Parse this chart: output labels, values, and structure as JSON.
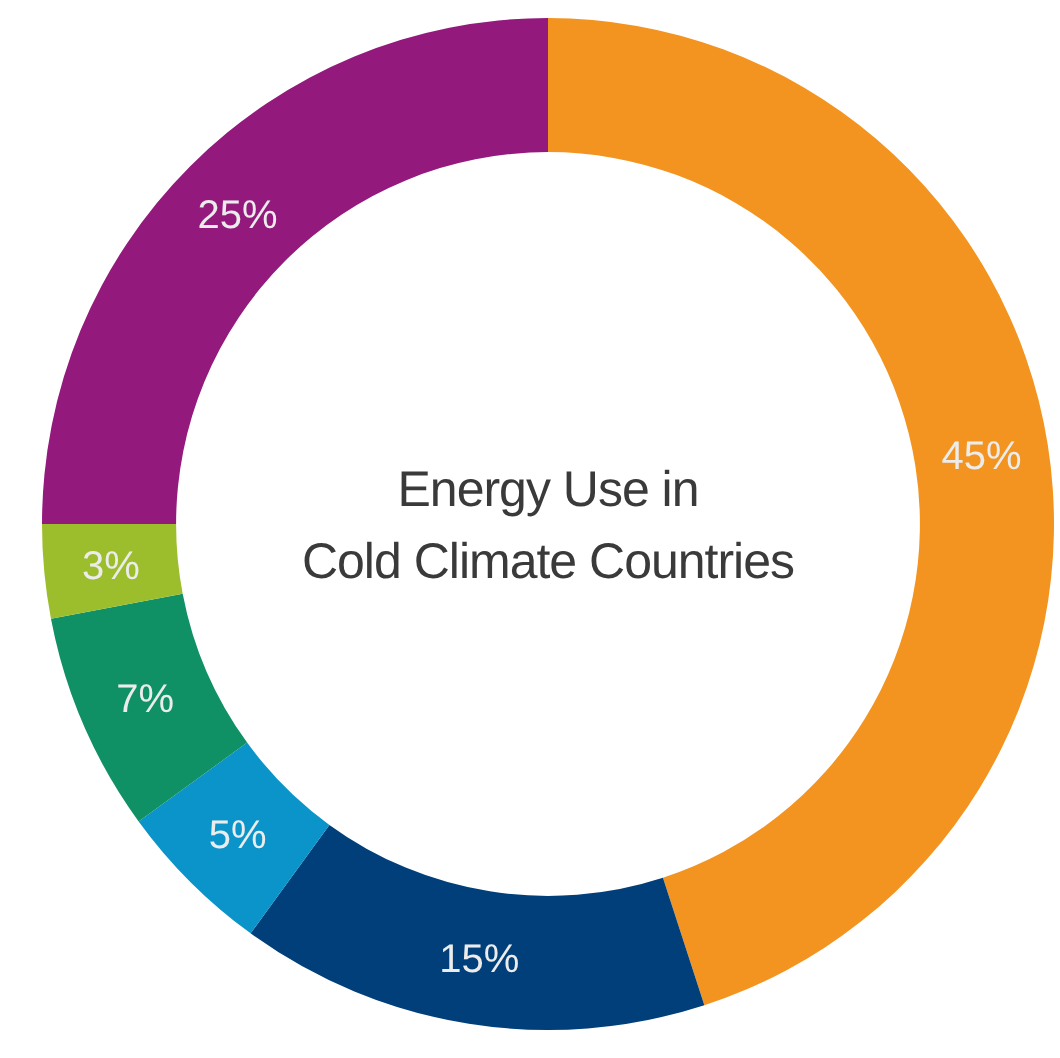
{
  "chart_data": {
    "type": "donut",
    "title": "Energy Use in\nCold Climate Countries",
    "categories": [
      null,
      null,
      null,
      null,
      null,
      null
    ],
    "values": [
      45,
      15,
      5,
      7,
      3,
      25
    ],
    "colors": [
      "#f39420",
      "#003f7a",
      "#0b94c9",
      "#0f9065",
      "#9dbe2c",
      "#93197c"
    ],
    "value_labels": [
      "45%",
      "15%",
      "5%",
      "7%",
      "3%",
      "25%"
    ]
  }
}
